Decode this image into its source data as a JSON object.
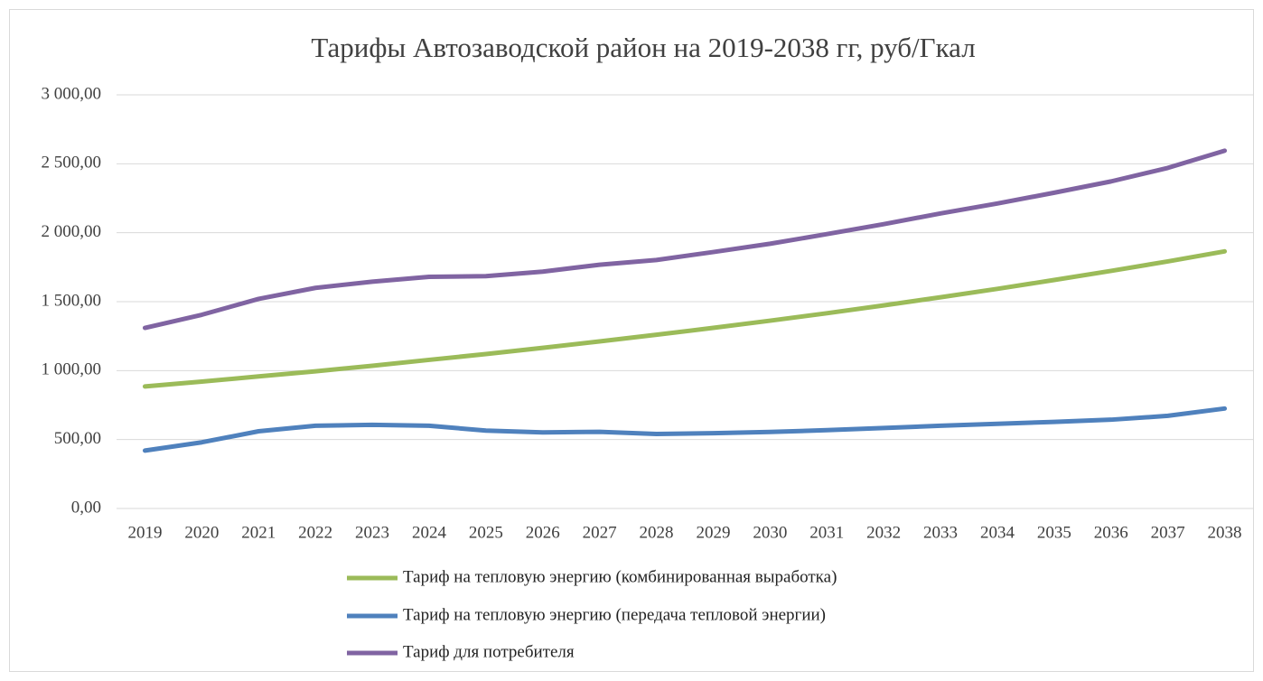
{
  "chart_data": {
    "type": "line",
    "title": "Тарифы Автозаводской район на 2019-2038 гг, руб/Гкал",
    "categories": [
      "2019",
      "2020",
      "2021",
      "2022",
      "2023",
      "2024",
      "2025",
      "2026",
      "2027",
      "2028",
      "2029",
      "2030",
      "2031",
      "2032",
      "2033",
      "2034",
      "2035",
      "2036",
      "2037",
      "2038"
    ],
    "series": [
      {
        "name": "Тариф на тепловую энергию (комбинированная выработка)",
        "color": "#9bbb59",
        "values": [
          885,
          920,
          958,
          995,
          1035,
          1078,
          1120,
          1165,
          1212,
          1260,
          1310,
          1362,
          1416,
          1473,
          1532,
          1593,
          1657,
          1723,
          1792,
          1865
        ]
      },
      {
        "name": "Тариф на тепловую энергию (передача тепловой энергии)",
        "color": "#4f81bd",
        "values": [
          420,
          480,
          560,
          600,
          607,
          600,
          565,
          552,
          556,
          540,
          546,
          555,
          568,
          584,
          600,
          614,
          628,
          644,
          672,
          725
        ]
      },
      {
        "name": "Тариф для потребителя",
        "color": "#8064a2",
        "values": [
          1310,
          1405,
          1520,
          1600,
          1645,
          1680,
          1685,
          1718,
          1768,
          1802,
          1860,
          1920,
          1990,
          2062,
          2140,
          2212,
          2290,
          2372,
          2470,
          2595
        ]
      }
    ],
    "ylim": [
      0,
      3000
    ],
    "yticks": [
      {
        "value": 0,
        "label": "0,00"
      },
      {
        "value": 500,
        "label": "500,00"
      },
      {
        "value": 1000,
        "label": "1 000,00"
      },
      {
        "value": 1500,
        "label": "1 500,00"
      },
      {
        "value": 2000,
        "label": "2 000,00"
      },
      {
        "value": 2500,
        "label": "2 500,00"
      },
      {
        "value": 3000,
        "label": "3 000,00"
      }
    ],
    "grid": true,
    "legend": "bottom"
  }
}
